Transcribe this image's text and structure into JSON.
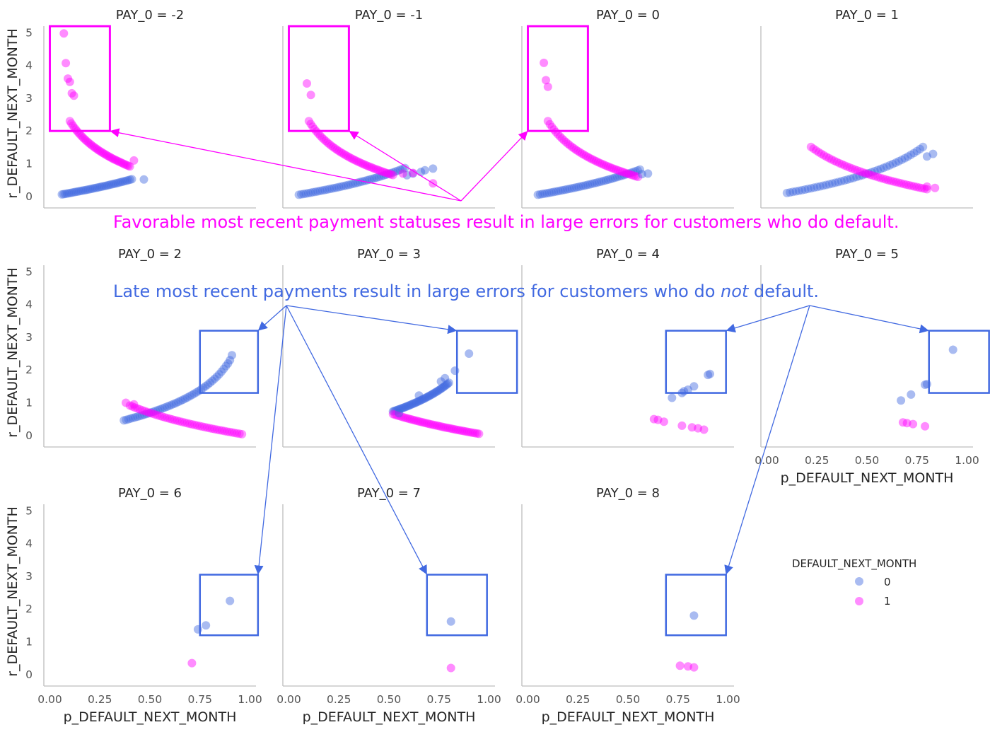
{
  "chart_data": {
    "type": "scatter",
    "x_label": "p_DEFAULT_NEXT_MONTH",
    "y_label": "r_DEFAULT_NEXT_MONTH",
    "x_ticks": [
      "0.00",
      "0.25",
      "0.50",
      "0.75",
      "1.00"
    ],
    "y_ticks": [
      "0",
      "1",
      "2",
      "3",
      "4",
      "5"
    ],
    "xlim": [
      -0.03,
      1.03
    ],
    "ylim": [
      -0.35,
      5.2
    ],
    "grid": false,
    "legend": {
      "title": "DEFAULT_NEXT_MONTH",
      "placement": "right",
      "entries": [
        {
          "label": "0",
          "color": "#4169e1"
        },
        {
          "label": "1",
          "color": "#ff00ff"
        }
      ]
    },
    "colors": {
      "class_0": "#4169e1",
      "class_1": "#ff00ff"
    },
    "panels": [
      {
        "title": "PAY_0 = -2",
        "curve0": {
          "x_from": 0.06,
          "x_to": 0.41,
          "density": 40
        },
        "curve1": {
          "x_from": 0.1,
          "x_to": 0.4,
          "density": 40
        },
        "points0": [
          [
            0.47,
            0.52
          ]
        ],
        "points1": [
          [
            0.07,
            4.98
          ],
          [
            0.08,
            4.07
          ],
          [
            0.09,
            3.6
          ],
          [
            0.1,
            3.5
          ],
          [
            0.11,
            3.15
          ],
          [
            0.12,
            3.08
          ],
          [
            0.42,
            1.1
          ]
        ]
      },
      {
        "title": "PAY_0 = -1",
        "curve0": {
          "x_from": 0.05,
          "x_to": 0.58,
          "density": 45
        },
        "curve1": {
          "x_from": 0.1,
          "x_to": 0.52,
          "density": 45
        },
        "points0": [
          [
            0.59,
            0.65
          ],
          [
            0.62,
            0.7
          ],
          [
            0.68,
            0.8
          ],
          [
            0.72,
            0.85
          ],
          [
            0.66,
            0.75
          ]
        ],
        "points1": [
          [
            0.09,
            3.45
          ],
          [
            0.11,
            3.1
          ],
          [
            0.57,
            0.7
          ],
          [
            0.62,
            0.72
          ],
          [
            0.72,
            0.4
          ]
        ]
      },
      {
        "title": "PAY_0 = 0",
        "curve0": {
          "x_from": 0.05,
          "x_to": 0.56,
          "density": 45
        },
        "curve1": {
          "x_from": 0.1,
          "x_to": 0.55,
          "density": 45
        },
        "points0": [
          [
            0.57,
            0.68
          ],
          [
            0.6,
            0.7
          ]
        ],
        "points1": [
          [
            0.08,
            4.08
          ],
          [
            0.09,
            3.55
          ],
          [
            0.1,
            3.35
          ]
        ]
      },
      {
        "title": "PAY_0 = 1",
        "curve0": {
          "x_from": 0.1,
          "x_to": 0.78,
          "density": 45
        },
        "curve1": {
          "x_from": 0.22,
          "x_to": 0.8,
          "density": 45
        },
        "points0": [
          [
            0.83,
            1.3
          ],
          [
            0.8,
            1.22
          ]
        ],
        "points1": [
          [
            0.84,
            0.26
          ],
          [
            0.8,
            0.3
          ]
        ]
      },
      {
        "title": "PAY_0 = 2",
        "curve0": {
          "x_from": 0.37,
          "x_to": 0.88,
          "density": 45
        },
        "curve1": {
          "x_from": 0.4,
          "x_to": 0.96,
          "density": 45
        },
        "points0": [
          [
            0.9,
            2.3
          ],
          [
            0.91,
            2.45
          ],
          [
            0.89,
            2.2
          ]
        ],
        "points1": [
          [
            0.38,
            1.0
          ],
          [
            0.42,
            0.95
          ]
        ]
      },
      {
        "title": "PAY_0 = 3",
        "curve0": {
          "x_from": 0.52,
          "x_to": 0.8,
          "density": 45
        },
        "curve1": {
          "x_from": 0.52,
          "x_to": 0.95,
          "density": 45
        },
        "points0": [
          [
            0.55,
            0.68
          ],
          [
            0.65,
            1.22
          ],
          [
            0.76,
            1.65
          ],
          [
            0.78,
            1.75
          ],
          [
            0.83,
            1.98
          ],
          [
            0.9,
            2.5
          ]
        ],
        "points1": []
      },
      {
        "title": "PAY_0 = 4",
        "curve0": null,
        "curve1": null,
        "points0": [
          [
            0.72,
            1.15
          ],
          [
            0.77,
            1.3
          ],
          [
            0.8,
            1.4
          ],
          [
            0.83,
            1.5
          ],
          [
            0.9,
            1.85
          ],
          [
            0.91,
            1.88
          ],
          [
            0.78,
            1.35
          ]
        ],
        "points1": [
          [
            0.63,
            0.5
          ],
          [
            0.65,
            0.48
          ],
          [
            0.68,
            0.42
          ],
          [
            0.77,
            0.3
          ],
          [
            0.82,
            0.25
          ],
          [
            0.85,
            0.22
          ],
          [
            0.88,
            0.18
          ]
        ]
      },
      {
        "title": "PAY_0 = 5",
        "curve0": null,
        "curve1": null,
        "points0": [
          [
            0.67,
            1.07
          ],
          [
            0.72,
            1.25
          ],
          [
            0.79,
            1.55
          ],
          [
            0.8,
            1.57
          ],
          [
            0.93,
            2.62
          ]
        ],
        "points1": [
          [
            0.68,
            0.4
          ],
          [
            0.7,
            0.38
          ],
          [
            0.73,
            0.35
          ],
          [
            0.79,
            0.28
          ]
        ]
      },
      {
        "title": "PAY_0 = 6",
        "curve0": null,
        "curve1": null,
        "points0": [
          [
            0.74,
            1.38
          ],
          [
            0.78,
            1.5
          ],
          [
            0.9,
            2.25
          ]
        ],
        "points1": [
          [
            0.71,
            0.35
          ]
        ]
      },
      {
        "title": "PAY_0 = 7",
        "curve0": null,
        "curve1": null,
        "points0": [
          [
            0.81,
            1.62
          ]
        ],
        "points1": [
          [
            0.81,
            0.2
          ]
        ]
      },
      {
        "title": "PAY_0 = 8",
        "curve0": null,
        "curve1": null,
        "points0": [
          [
            0.83,
            1.8
          ]
        ],
        "points1": [
          [
            0.76,
            0.27
          ],
          [
            0.8,
            0.25
          ],
          [
            0.83,
            0.22
          ]
        ]
      }
    ],
    "annotations": {
      "magenta_text": "Favorable most recent payment statuses result in large errors for customers who do default.",
      "blue_text_before": "Late most recent payments result in large errors for customers who do ",
      "blue_text_italic": "not",
      "blue_text_after": " default.",
      "magenta_boxes": [
        {
          "panel": 0,
          "x": [
            0.0,
            0.3
          ],
          "y": [
            2.0,
            5.2
          ]
        },
        {
          "panel": 1,
          "x": [
            0.0,
            0.3
          ],
          "y": [
            2.0,
            5.2
          ]
        },
        {
          "panel": 2,
          "x": [
            0.0,
            0.3
          ],
          "y": [
            2.0,
            5.2
          ]
        }
      ],
      "blue_boxes": [
        {
          "panel": 4,
          "x": [
            0.75,
            1.04
          ],
          "y": [
            1.3,
            3.2
          ]
        },
        {
          "panel": 5,
          "x": [
            0.84,
            1.14
          ],
          "y": [
            1.3,
            3.2
          ]
        },
        {
          "panel": 6,
          "x": [
            0.69,
            0.99
          ],
          "y": [
            1.3,
            3.2
          ]
        },
        {
          "panel": 7,
          "x": [
            0.81,
            1.11
          ],
          "y": [
            1.3,
            3.2
          ]
        },
        {
          "panel": 8,
          "x": [
            0.75,
            1.04
          ],
          "y": [
            1.2,
            3.05
          ]
        },
        {
          "panel": 9,
          "x": [
            0.69,
            0.99
          ],
          "y": [
            1.2,
            3.05
          ]
        },
        {
          "panel": 10,
          "x": [
            0.69,
            0.99
          ],
          "y": [
            1.2,
            3.05
          ]
        }
      ]
    }
  }
}
